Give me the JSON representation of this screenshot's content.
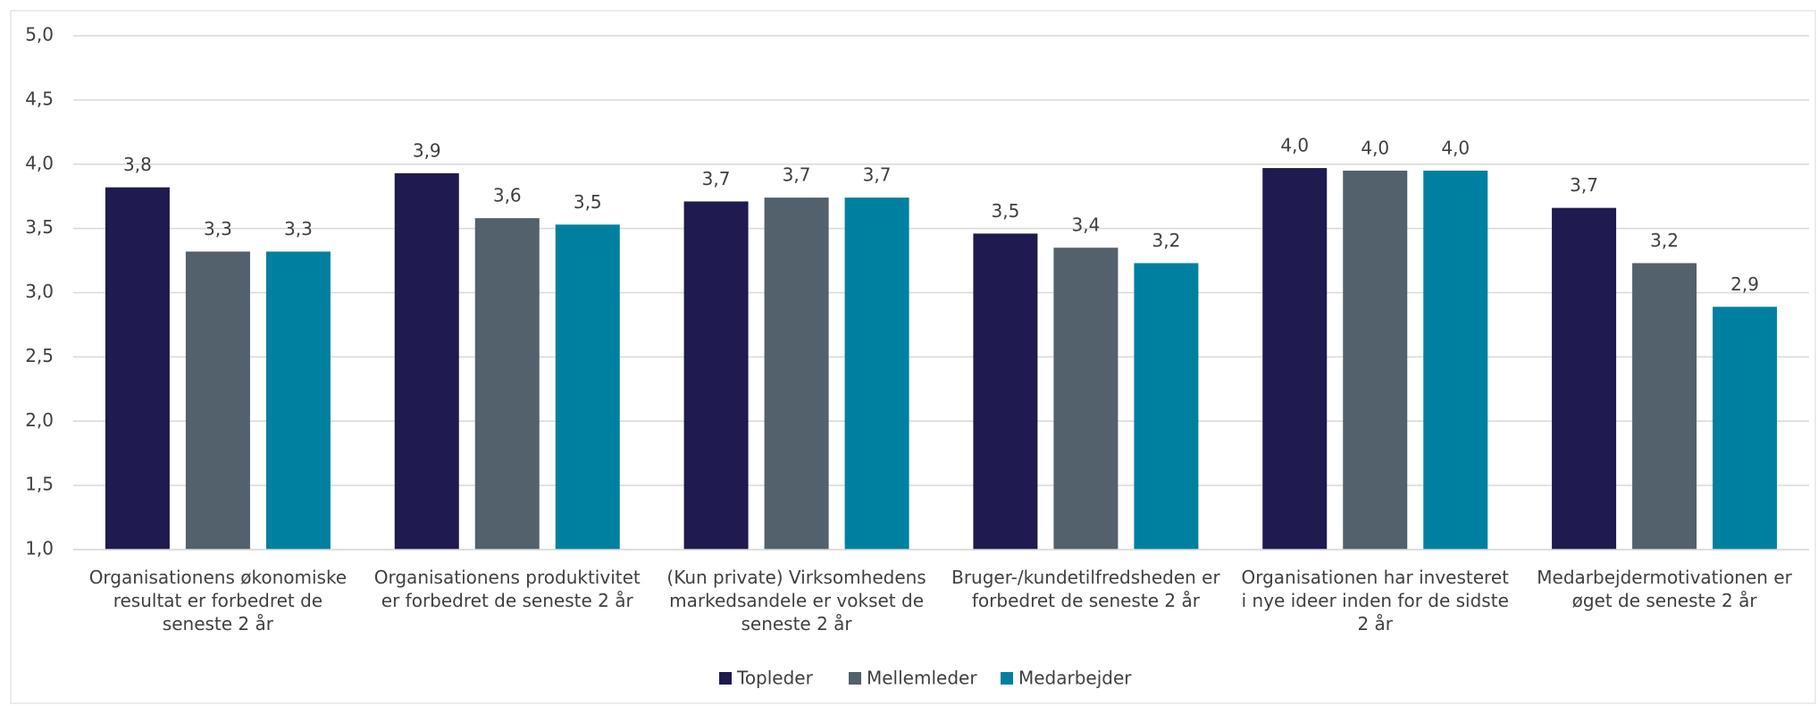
{
  "chart_data": {
    "type": "bar",
    "categories": [
      "Organisationens økonomiske resultat er forbedret de seneste 2 år",
      "Organisationens produktivitet er forbedret de seneste 2 år",
      "(Kun private) Virksomhedens markedsandele er vokset de seneste 2 år",
      "Bruger-/kundetilfredsheden er forbedret de seneste 2 år",
      "Organisationen har investeret i nye ideer inden for de sidste 2 år",
      "Medarbejdermotivationen er øget de seneste 2 år"
    ],
    "series": [
      {
        "name": "Topleder",
        "color": "#1f1a4f",
        "values": [
          3.82,
          3.93,
          3.71,
          3.46,
          3.97,
          3.66
        ],
        "value_labels": [
          "3,8",
          "3,9",
          "3,7",
          "3,5",
          "4,0",
          "3,7"
        ]
      },
      {
        "name": "Mellemleder",
        "color": "#52616b",
        "values": [
          3.32,
          3.58,
          3.74,
          3.35,
          3.95,
          3.23
        ],
        "value_labels": [
          "3,3",
          "3,6",
          "3,7",
          "3,4",
          "4,0",
          "3,2"
        ]
      },
      {
        "name": "Medarbejder",
        "color": "#0080a0",
        "values": [
          3.32,
          3.53,
          3.74,
          3.23,
          3.95,
          2.89
        ],
        "value_labels": [
          "3,3",
          "3,5",
          "3,7",
          "3,2",
          "4,0",
          "2,9"
        ]
      }
    ],
    "ylim": [
      1,
      5
    ],
    "yticks": [
      {
        "value": 1,
        "label": "1,0"
      },
      {
        "value": 1.5,
        "label": "1,5"
      },
      {
        "value": 2,
        "label": "2,0"
      },
      {
        "value": 2.5,
        "label": "2,5"
      },
      {
        "value": 3,
        "label": "3,0"
      },
      {
        "value": 3.5,
        "label": "3,5"
      },
      {
        "value": 4,
        "label": "4,0"
      },
      {
        "value": 4.5,
        "label": "4,5"
      },
      {
        "value": 5,
        "label": "5,0"
      }
    ],
    "grid": true,
    "legend": "bottom"
  }
}
